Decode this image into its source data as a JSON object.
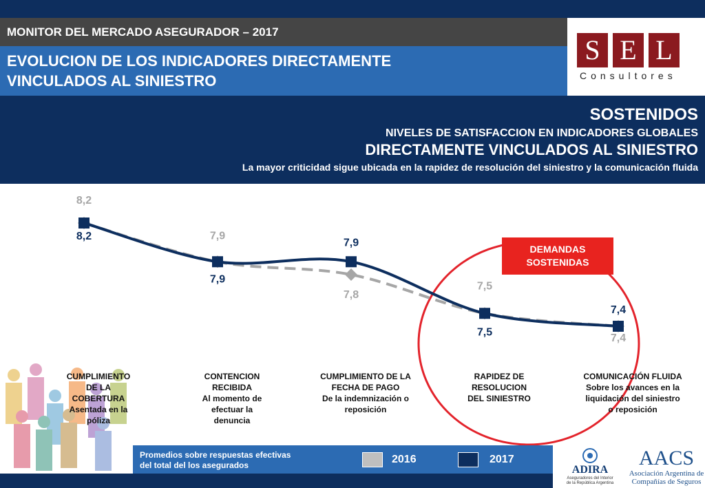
{
  "header": {
    "monitor_title": "MONITOR DEL MERCADO ASEGURADOR – 2017",
    "section_title_line1": "EVOLUCION DE LOS INDICADORES DIRECTAMENTE",
    "section_title_line2": "VINCULADOS AL SINIESTRO"
  },
  "logo": {
    "letters": [
      "S",
      "E",
      "L"
    ],
    "subtitle": "Consultores",
    "color": "#8b1a1f"
  },
  "summary": {
    "headline": "SOSTENIDOS",
    "line2": "NIVELES DE SATISFACCION EN INDICADORES GLOBALES",
    "line3": "DIRECTAMENTE VINCULADOS AL SINIESTRO",
    "line4": "La mayor criticidad sigue ubicada en la rapidez de resolución del siniestro y la comunicación fluida"
  },
  "callout": {
    "line1": "DEMANDAS",
    "line2": "SOSTENIDAS",
    "color": "#e8231f"
  },
  "chart_data": {
    "type": "line",
    "categories": [
      [
        "CUMPLIMIENTO",
        "DE LA",
        "COBERTURA",
        "Asentada en la",
        "póliza"
      ],
      [
        "CONTENCION",
        "RECIBIDA",
        "Al momento de",
        "efectuar la",
        "denuncia"
      ],
      [
        "CUMPLIMIENTO DE LA",
        "FECHA DE PAGO",
        "De la indemnización o",
        "reposición"
      ],
      [
        "RAPIDEZ DE",
        "RESOLUCION",
        "DEL SINIESTRO"
      ],
      [
        "COMUNICACIÓN FLUIDA",
        "Sobre los avances en la",
        "liquidación del siniestro",
        "o reposición"
      ]
    ],
    "series": [
      {
        "name": "2016",
        "values": [
          8.2,
          7.9,
          7.8,
          7.5,
          7.4
        ],
        "labels": [
          "8,2",
          "7,9",
          "7,8",
          "7,5",
          "7,4"
        ],
        "color": "#a6a6a6",
        "style": "dashed"
      },
      {
        "name": "2017",
        "values": [
          8.2,
          7.9,
          7.9,
          7.5,
          7.4
        ],
        "labels": [
          "8,2",
          "7,9",
          "7,9",
          "7,5",
          "7,4"
        ],
        "color": "#0d2e5e",
        "style": "solid"
      }
    ],
    "ylim": [
      7.2,
      8.4
    ],
    "grid": false
  },
  "footer": {
    "note_line1": "Promedios sobre respuestas efectivas",
    "note_line2": "del total del los asegurados",
    "legend": [
      {
        "label": "2016",
        "color": "#bfbfbf"
      },
      {
        "label": "2017",
        "color": "#0d2e5e"
      }
    ]
  },
  "partners": {
    "adira_name": "ADIRA",
    "adira_sub_line1": "Aseguradores del Interior",
    "adira_sub_line2": "de la República Argentina",
    "aacs_name": "AACS",
    "aacs_sub_line1": "Asociación Argentina de",
    "aacs_sub_line2": "Compañías de Seguros"
  }
}
